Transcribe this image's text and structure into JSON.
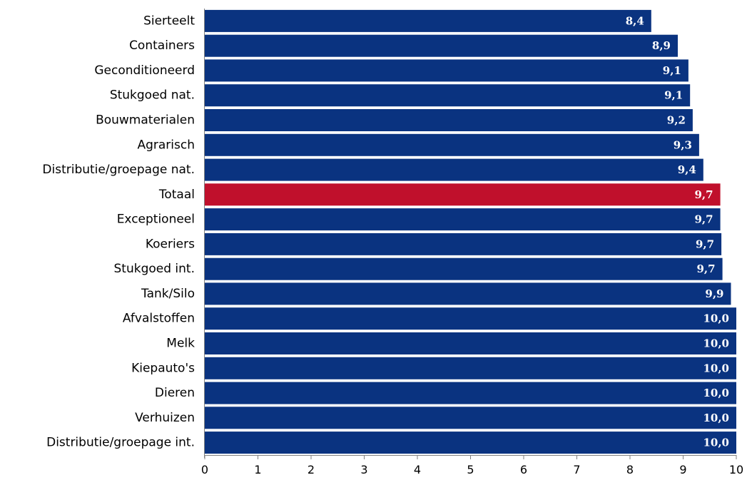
{
  "chart_data": {
    "type": "bar",
    "orientation": "horizontal",
    "categories": [
      "Sierteelt",
      "Containers",
      "Geconditioneerd",
      "Stukgoed nat.",
      "Bouwmaterialen",
      "Agrarisch",
      "Distributie/groepage nat.",
      "Totaal",
      "Exceptioneel",
      "Koeriers",
      "Stukgoed int.",
      "Tank/Silo",
      "Afvalstoffen",
      "Melk",
      "Kiepauto's",
      "Dieren",
      "Verhuizen",
      "Distributie/groepage int."
    ],
    "values": [
      8.4,
      8.9,
      9.1,
      9.13,
      9.18,
      9.3,
      9.38,
      9.7,
      9.7,
      9.72,
      9.74,
      9.9,
      10.0,
      10.0,
      10.0,
      10.0,
      10.0,
      10.0
    ],
    "value_labels": [
      "8,4",
      "8,9",
      "9,1",
      "9,1",
      "9,2",
      "9,3",
      "9,4",
      "9,7",
      "9,7",
      "9,7",
      "9,7",
      "9,9",
      "10,0",
      "10,0",
      "10,0",
      "10,0",
      "10,0",
      "10,0"
    ],
    "highlight_category": "Totaal",
    "xlim": [
      0,
      10
    ],
    "x_ticks": [
      "0",
      "1",
      "2",
      "3",
      "4",
      "5",
      "6",
      "7",
      "8",
      "9",
      "10"
    ],
    "title": "",
    "xlabel": "",
    "ylabel": "",
    "grid": false,
    "colors": {
      "bar": "#0a3380",
      "highlight": "#c0102c",
      "value_text": "#ffffff",
      "axis": "#808080"
    }
  }
}
